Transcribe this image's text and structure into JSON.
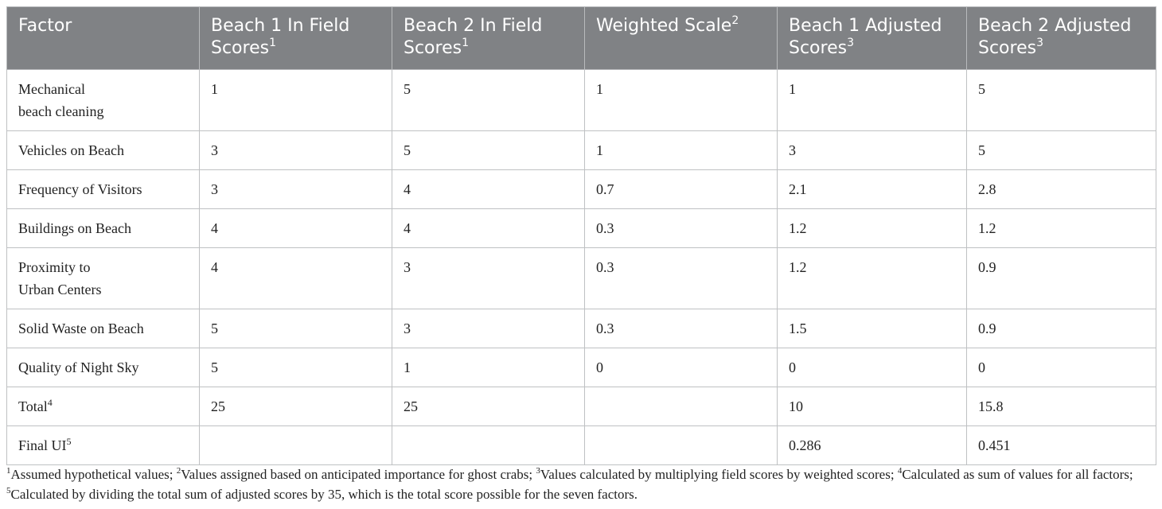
{
  "table": {
    "headers": [
      {
        "text": "Factor",
        "sup": ""
      },
      {
        "text": "Beach 1 In Field Scores",
        "sup": "1"
      },
      {
        "text": "Beach 2 In Field Scores",
        "sup": "1"
      },
      {
        "text": "Weighted Scale",
        "sup": "2"
      },
      {
        "text": "Beach 1 Adjusted Scores",
        "sup": "3"
      },
      {
        "text": "Beach 2 Adjusted Scores",
        "sup": "3"
      }
    ],
    "rows": [
      {
        "factor": "Mechanical beach cleaning",
        "sup": "",
        "b1_field": "1",
        "b2_field": "5",
        "weight": "1",
        "b1_adj": "1",
        "b2_adj": "5"
      },
      {
        "factor": "Vehicles on Beach",
        "sup": "",
        "b1_field": "3",
        "b2_field": "5",
        "weight": "1",
        "b1_adj": "3",
        "b2_adj": "5"
      },
      {
        "factor": "Frequency of Visitors",
        "sup": "",
        "b1_field": "3",
        "b2_field": "4",
        "weight": "0.7",
        "b1_adj": "2.1",
        "b2_adj": "2.8"
      },
      {
        "factor": "Buildings on Beach",
        "sup": "",
        "b1_field": "4",
        "b2_field": "4",
        "weight": "0.3",
        "b1_adj": "1.2",
        "b2_adj": "1.2"
      },
      {
        "factor": "Proximity to Urban Centers",
        "sup": "",
        "b1_field": "4",
        "b2_field": "3",
        "weight": "0.3",
        "b1_adj": "1.2",
        "b2_adj": "0.9"
      },
      {
        "factor": "Solid Waste on Beach",
        "sup": "",
        "b1_field": "5",
        "b2_field": "3",
        "weight": "0.3",
        "b1_adj": "1.5",
        "b2_adj": "0.9"
      },
      {
        "factor": "Quality of Night Sky",
        "sup": "",
        "b1_field": "5",
        "b2_field": "1",
        "weight": "0",
        "b1_adj": "0",
        "b2_adj": "0"
      },
      {
        "factor": "Total",
        "sup": "4",
        "b1_field": "25",
        "b2_field": "25",
        "weight": "",
        "b1_adj": "10",
        "b2_adj": "15.8"
      },
      {
        "factor": "Final UI",
        "sup": "5",
        "b1_field": "",
        "b2_field": "",
        "weight": "",
        "b1_adj": "0.286",
        "b2_adj": "0.451"
      }
    ]
  },
  "footnotes": [
    {
      "sup": "1",
      "text": "Assumed hypothetical values; "
    },
    {
      "sup": "2",
      "text": "Values assigned based on anticipated importance for ghost crabs; "
    },
    {
      "sup": "3",
      "text": "Values calculated by multiplying field scores by weighted scores; "
    },
    {
      "sup": "4",
      "text": "Calculated as sum of values for all factors; "
    },
    {
      "sup": "5",
      "text": "Calculated by dividing the total sum of adjusted scores by 35, which is the total score possible for the seven factors."
    }
  ]
}
